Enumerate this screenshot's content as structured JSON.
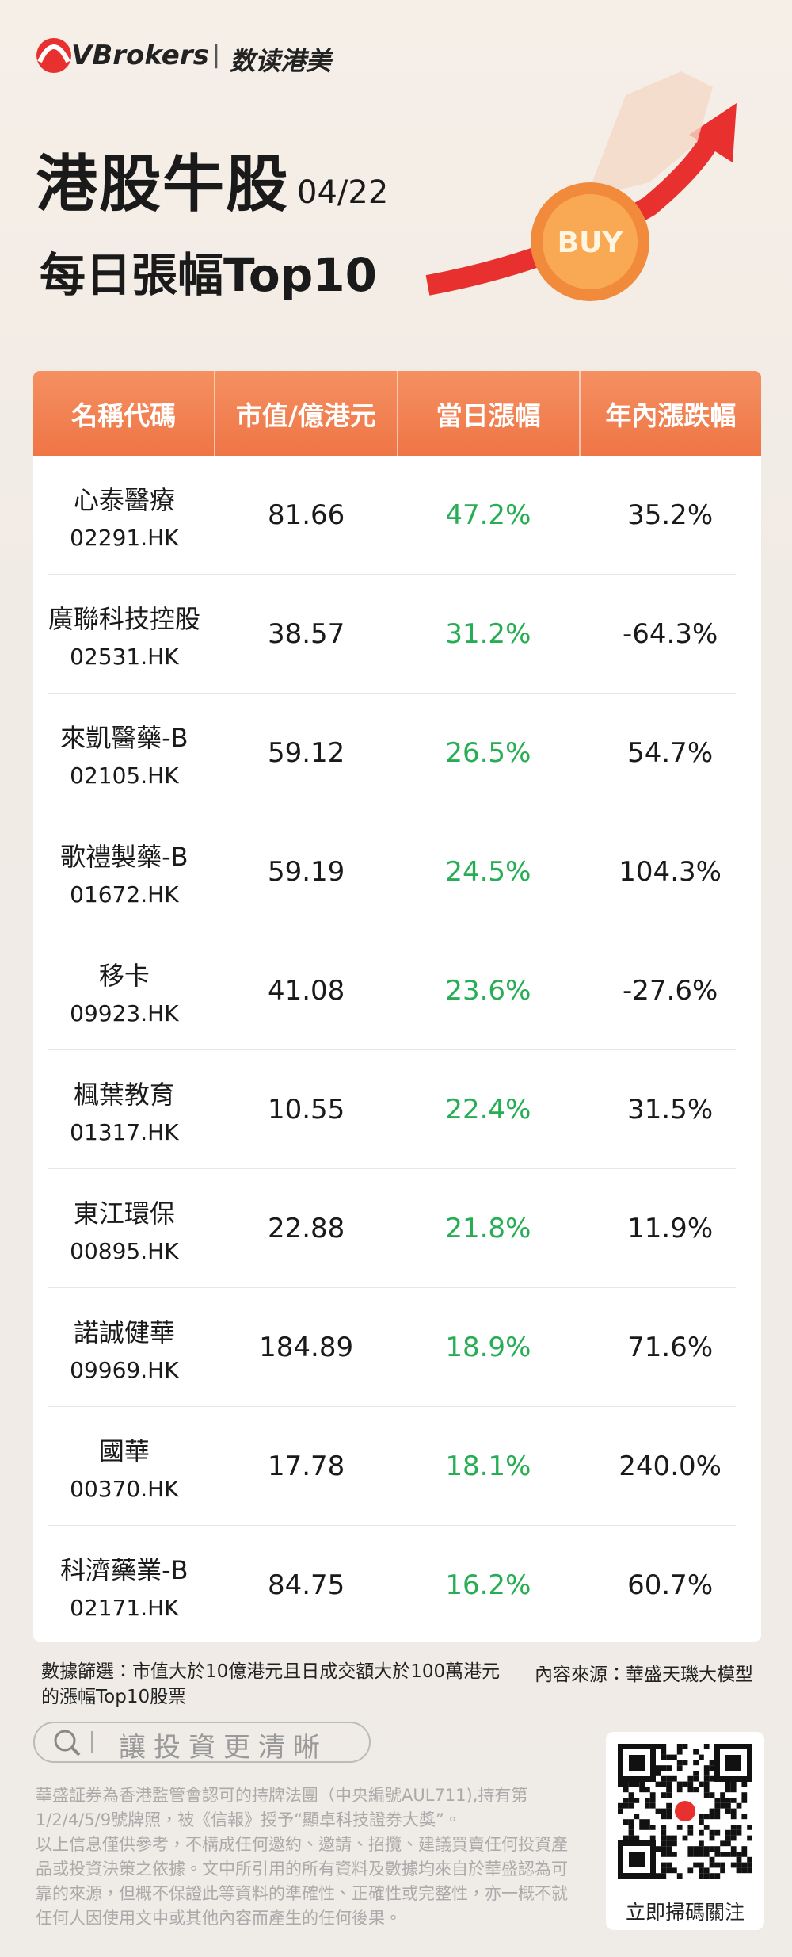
{
  "header": {
    "brand": "VBrokers",
    "brand_divider": "|",
    "brand_sub": "数读港美",
    "title": "港股牛股",
    "date": "04/22",
    "subtitle": "每日張幅Top10",
    "graphic_text": "BUY"
  },
  "table": {
    "columns": [
      "名稱代碼",
      "市值/億港元",
      "當日漲幅",
      "年內漲跌幅"
    ],
    "rows": [
      [
        "心泰醫療",
        "02291.HK",
        "81.66",
        "47.2%",
        "35.2%"
      ],
      [
        "廣聯科技控股",
        "02531.HK",
        "38.57",
        "31.2%",
        "-64.3%"
      ],
      [
        "來凱醫藥-B",
        "02105.HK",
        "59.12",
        "26.5%",
        "54.7%"
      ],
      [
        "歌禮製藥-B",
        "01672.HK",
        "59.19",
        "24.5%",
        "104.3%"
      ],
      [
        "移卡",
        "09923.HK",
        "41.08",
        "23.6%",
        "-27.6%"
      ],
      [
        "楓葉教育",
        "01317.HK",
        "10.55",
        "22.4%",
        "31.5%"
      ],
      [
        "東江環保",
        "00895.HK",
        "22.88",
        "21.8%",
        "11.9%"
      ],
      [
        "諾誠健華",
        "09969.HK",
        "184.89",
        "18.9%",
        "71.6%"
      ],
      [
        "國華",
        "00370.HK",
        "17.78",
        "18.1%",
        "240.0%"
      ],
      [
        "科濟藥業-B",
        "02171.HK",
        "84.75",
        "16.2%",
        "60.7%"
      ]
    ]
  },
  "footer": {
    "filter_note": "數據篩選：市值大於10億港元且日成交額大於100萬港元的漲幅Top10股票",
    "source_note": "內容來源：華盛天璣大模型",
    "search_text": "讓投資更清晰",
    "disclaimer": [
      "華盛証券為香港監管會認可的持牌法團（中央編號AUL711),持有第1/2/4/5/9號牌照，被《信報》授予“顯卓科技證券大獎”。",
      "以上信息僅供參考，不構成任何邀約、邀請、招攬、建議買賣任何投資產品或投資決策之依據。文中所引用的所有資料及數據均來自於華盛認為可靠的來源，但概不保證此等資料的準確性、正確性或完整性，亦一概不就任何人因使用文中或其他內容而產生的任何後果。"
    ],
    "qr_caption": "立即掃碼關注"
  }
}
